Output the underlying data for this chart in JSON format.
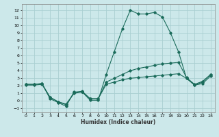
{
  "xlabel": "Humidex (Indice chaleur)",
  "bg_color": "#cce8ea",
  "grid_color": "#aacfd2",
  "line_color": "#1a6b5a",
  "xlim": [
    -0.5,
    23.5
  ],
  "ylim": [
    -1.5,
    12.8
  ],
  "xticks": [
    0,
    1,
    2,
    3,
    4,
    5,
    6,
    7,
    8,
    9,
    10,
    11,
    12,
    13,
    14,
    15,
    16,
    17,
    18,
    19,
    20,
    21,
    22,
    23
  ],
  "yticks": [
    -1,
    0,
    1,
    2,
    3,
    4,
    5,
    6,
    7,
    8,
    9,
    10,
    11,
    12
  ],
  "series1_x": [
    0,
    1,
    2,
    3,
    4,
    5,
    6,
    7,
    8,
    9,
    10,
    11,
    12,
    13,
    14,
    15,
    16,
    17,
    18,
    19,
    20,
    21,
    22,
    23
  ],
  "series1_y": [
    2.2,
    2.2,
    2.3,
    0.3,
    -0.2,
    -0.7,
    1.2,
    1.2,
    0.1,
    0.1,
    3.5,
    6.5,
    9.5,
    12.0,
    11.5,
    11.5,
    11.7,
    11.1,
    9.0,
    6.5,
    3.0,
    2.1,
    2.3,
    3.3
  ],
  "series2_x": [
    0,
    1,
    2,
    3,
    4,
    5,
    6,
    7,
    8,
    9,
    10,
    11,
    12,
    13,
    14,
    15,
    16,
    17,
    18,
    19,
    20,
    21,
    22,
    23
  ],
  "series2_y": [
    2.2,
    2.2,
    2.3,
    0.5,
    -0.1,
    -0.5,
    1.1,
    1.3,
    0.3,
    0.3,
    2.5,
    3.0,
    3.5,
    4.0,
    4.3,
    4.5,
    4.7,
    4.9,
    5.0,
    5.1,
    3.1,
    2.2,
    2.6,
    3.5
  ],
  "series3_x": [
    0,
    1,
    2,
    3,
    4,
    5,
    6,
    7,
    8,
    9,
    10,
    11,
    12,
    13,
    14,
    15,
    16,
    17,
    18,
    19,
    20,
    21,
    22,
    23
  ],
  "series3_y": [
    2.1,
    2.1,
    2.2,
    0.5,
    -0.1,
    -0.4,
    1.0,
    1.2,
    0.3,
    0.3,
    2.2,
    2.5,
    2.8,
    3.0,
    3.1,
    3.2,
    3.3,
    3.4,
    3.5,
    3.6,
    3.0,
    2.1,
    2.5,
    3.5
  ]
}
